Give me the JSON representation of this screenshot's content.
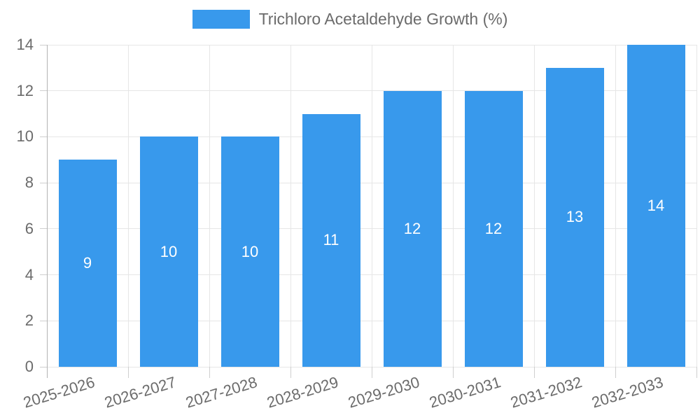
{
  "legend": {
    "swatch_color": "#3899EC"
  },
  "chart_data": {
    "type": "bar",
    "title": "Trichloro Acetaldehyde Growth (%)",
    "legend_position": "top",
    "categories": [
      "2025-2026",
      "2026-2027",
      "2027-2028",
      "2028-2029",
      "2029-2030",
      "2030-2031",
      "2031-2032",
      "2032-2033"
    ],
    "series": [
      {
        "name": "Trichloro Acetaldehyde Growth (%)",
        "values": [
          9,
          10,
          10,
          11,
          12,
          12,
          13,
          14
        ]
      }
    ],
    "xlabel": "",
    "ylabel": "",
    "ylim": [
      0,
      14
    ],
    "yticks": [
      0,
      2,
      4,
      6,
      8,
      10,
      12,
      14
    ],
    "grid": true,
    "bar_color": "#3899EC",
    "bar_label_color": "#ffffff",
    "axis_text_color": "#6b6b6b",
    "grid_color": "#e6e6e6",
    "axis_line_color": "#b3b3b3",
    "tick_color": "#cfcfcf",
    "background": "#ffffff"
  }
}
